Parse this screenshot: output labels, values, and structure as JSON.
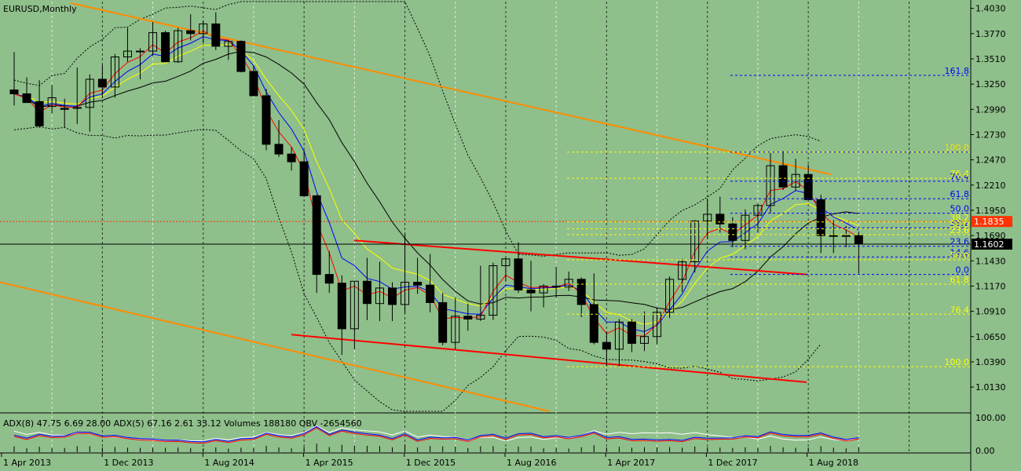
{
  "header": {
    "symbol_label": "EURUSD,Monthly"
  },
  "colors": {
    "background": "#8fbf8b",
    "ema_fast": "#ff0000",
    "ema_mid": "#0000ff",
    "ema_slow": "#ffff00",
    "sma": "#000000",
    "trendline_orange": "#ff8c00",
    "channel_red": "#ff0000",
    "fib_blue": "#0000ff",
    "fib_yellow": "#ffff00",
    "price_tag_bg": "#000000",
    "ask_tag_bg": "#ff3300"
  },
  "chart_data": {
    "type": "candlestick",
    "title": "EURUSD,Monthly",
    "ylim": [
      0.988,
      1.41
    ],
    "y_ticks": [
      "1.4030",
      "1.3770",
      "1.3510",
      "1.3250",
      "1.2990",
      "1.2730",
      "1.2470",
      "1.2210",
      "1.1950",
      "1.1690",
      "1.1430",
      "1.1170",
      "1.0910",
      "1.0650",
      "1.0390",
      "1.0130"
    ],
    "x_ticks": [
      "1 Apr 2013",
      "1 Dec 2013",
      "1 Aug 2014",
      "1 Apr 2015",
      "1 Dec 2015",
      "1 Aug 2016",
      "1 Apr 2017",
      "1 Dec 2017",
      "1 Aug 2018"
    ],
    "current_price": {
      "value": 1.1602,
      "label": "1.1602"
    },
    "ask_price": {
      "value": 1.1835,
      "label": "1.1835"
    },
    "candles": [
      {
        "date": "2013-01",
        "o": 1.319,
        "h": 1.358,
        "l": 1.303,
        "c": 1.315
      },
      {
        "date": "2013-02",
        "o": 1.315,
        "h": 1.332,
        "l": 1.306,
        "c": 1.306
      },
      {
        "date": "2013-03",
        "o": 1.307,
        "h": 1.329,
        "l": 1.28,
        "c": 1.282
      },
      {
        "date": "2013-04",
        "o": 1.302,
        "h": 1.324,
        "l": 1.295,
        "c": 1.311
      },
      {
        "date": "2013-05",
        "o": 1.3,
        "h": 1.31,
        "l": 1.28,
        "c": 1.299
      },
      {
        "date": "2013-06",
        "o": 1.3,
        "h": 1.342,
        "l": 1.284,
        "c": 1.301
      },
      {
        "date": "2013-07",
        "o": 1.301,
        "h": 1.335,
        "l": 1.276,
        "c": 1.33
      },
      {
        "date": "2013-08",
        "o": 1.33,
        "h": 1.345,
        "l": 1.311,
        "c": 1.322
      },
      {
        "date": "2013-09",
        "o": 1.322,
        "h": 1.356,
        "l": 1.311,
        "c": 1.353
      },
      {
        "date": "2013-10",
        "o": 1.353,
        "h": 1.383,
        "l": 1.348,
        "c": 1.359
      },
      {
        "date": "2013-11",
        "o": 1.359,
        "h": 1.362,
        "l": 1.33,
        "c": 1.359
      },
      {
        "date": "2013-12",
        "o": 1.359,
        "h": 1.389,
        "l": 1.354,
        "c": 1.378
      },
      {
        "date": "2014-01",
        "o": 1.378,
        "h": 1.38,
        "l": 1.348,
        "c": 1.348
      },
      {
        "date": "2014-02",
        "o": 1.348,
        "h": 1.383,
        "l": 1.347,
        "c": 1.38
      },
      {
        "date": "2014-03",
        "o": 1.38,
        "h": 1.397,
        "l": 1.37,
        "c": 1.377
      },
      {
        "date": "2014-04",
        "o": 1.377,
        "h": 1.39,
        "l": 1.367,
        "c": 1.387
      },
      {
        "date": "2014-05",
        "o": 1.387,
        "h": 1.399,
        "l": 1.36,
        "c": 1.364
      },
      {
        "date": "2014-06",
        "o": 1.364,
        "h": 1.37,
        "l": 1.35,
        "c": 1.369
      },
      {
        "date": "2014-07",
        "o": 1.369,
        "h": 1.37,
        "l": 1.337,
        "c": 1.338
      },
      {
        "date": "2014-08",
        "o": 1.338,
        "h": 1.344,
        "l": 1.313,
        "c": 1.313
      },
      {
        "date": "2014-09",
        "o": 1.313,
        "h": 1.32,
        "l": 1.257,
        "c": 1.263
      },
      {
        "date": "2014-10",
        "o": 1.263,
        "h": 1.288,
        "l": 1.25,
        "c": 1.253
      },
      {
        "date": "2014-11",
        "o": 1.253,
        "h": 1.26,
        "l": 1.236,
        "c": 1.245
      },
      {
        "date": "2014-12",
        "o": 1.245,
        "h": 1.257,
        "l": 1.209,
        "c": 1.21
      },
      {
        "date": "2015-01",
        "o": 1.21,
        "h": 1.211,
        "l": 1.11,
        "c": 1.129
      },
      {
        "date": "2015-02",
        "o": 1.129,
        "h": 1.153,
        "l": 1.11,
        "c": 1.12
      },
      {
        "date": "2015-03",
        "o": 1.12,
        "h": 1.128,
        "l": 1.046,
        "c": 1.073
      },
      {
        "date": "2015-04",
        "o": 1.073,
        "h": 1.122,
        "l": 1.052,
        "c": 1.122
      },
      {
        "date": "2015-05",
        "o": 1.122,
        "h": 1.146,
        "l": 1.082,
        "c": 1.099
      },
      {
        "date": "2015-06",
        "o": 1.099,
        "h": 1.142,
        "l": 1.081,
        "c": 1.115
      },
      {
        "date": "2015-07",
        "o": 1.115,
        "h": 1.121,
        "l": 1.081,
        "c": 1.098
      },
      {
        "date": "2015-08",
        "o": 1.098,
        "h": 1.171,
        "l": 1.089,
        "c": 1.121
      },
      {
        "date": "2015-09",
        "o": 1.121,
        "h": 1.146,
        "l": 1.109,
        "c": 1.118
      },
      {
        "date": "2015-10",
        "o": 1.118,
        "h": 1.15,
        "l": 1.09,
        "c": 1.1
      },
      {
        "date": "2015-11",
        "o": 1.1,
        "h": 1.11,
        "l": 1.056,
        "c": 1.059
      },
      {
        "date": "2015-12",
        "o": 1.059,
        "h": 1.105,
        "l": 1.052,
        "c": 1.086
      },
      {
        "date": "2016-01",
        "o": 1.086,
        "h": 1.099,
        "l": 1.071,
        "c": 1.083
      },
      {
        "date": "2016-02",
        "o": 1.083,
        "h": 1.138,
        "l": 1.081,
        "c": 1.087
      },
      {
        "date": "2016-03",
        "o": 1.087,
        "h": 1.141,
        "l": 1.082,
        "c": 1.138
      },
      {
        "date": "2016-04",
        "o": 1.138,
        "h": 1.146,
        "l": 1.122,
        "c": 1.145
      },
      {
        "date": "2016-05",
        "o": 1.145,
        "h": 1.162,
        "l": 1.11,
        "c": 1.113
      },
      {
        "date": "2016-06",
        "o": 1.113,
        "h": 1.143,
        "l": 1.091,
        "c": 1.11
      },
      {
        "date": "2016-07",
        "o": 1.11,
        "h": 1.119,
        "l": 1.095,
        "c": 1.117
      },
      {
        "date": "2016-08",
        "o": 1.117,
        "h": 1.137,
        "l": 1.105,
        "c": 1.116
      },
      {
        "date": "2016-09",
        "o": 1.116,
        "h": 1.132,
        "l": 1.112,
        "c": 1.124
      },
      {
        "date": "2016-10",
        "o": 1.124,
        "h": 1.126,
        "l": 1.085,
        "c": 1.098
      },
      {
        "date": "2016-11",
        "o": 1.098,
        "h": 1.13,
        "l": 1.057,
        "c": 1.059
      },
      {
        "date": "2016-12",
        "o": 1.059,
        "h": 1.07,
        "l": 1.034,
        "c": 1.052
      },
      {
        "date": "2017-01",
        "o": 1.052,
        "h": 1.083,
        "l": 1.034,
        "c": 1.08
      },
      {
        "date": "2017-02",
        "o": 1.08,
        "h": 1.083,
        "l": 1.049,
        "c": 1.058
      },
      {
        "date": "2017-03",
        "o": 1.058,
        "h": 1.091,
        "l": 1.05,
        "c": 1.065
      },
      {
        "date": "2017-04",
        "o": 1.065,
        "h": 1.095,
        "l": 1.057,
        "c": 1.09
      },
      {
        "date": "2017-05",
        "o": 1.09,
        "h": 1.127,
        "l": 1.084,
        "c": 1.124
      },
      {
        "date": "2017-06",
        "o": 1.124,
        "h": 1.145,
        "l": 1.111,
        "c": 1.142
      },
      {
        "date": "2017-07",
        "o": 1.142,
        "h": 1.185,
        "l": 1.131,
        "c": 1.184
      },
      {
        "date": "2017-08",
        "o": 1.184,
        "h": 1.207,
        "l": 1.166,
        "c": 1.191
      },
      {
        "date": "2017-09",
        "o": 1.191,
        "h": 1.209,
        "l": 1.172,
        "c": 1.181
      },
      {
        "date": "2017-10",
        "o": 1.181,
        "h": 1.188,
        "l": 1.157,
        "c": 1.164
      },
      {
        "date": "2017-11",
        "o": 1.164,
        "h": 1.196,
        "l": 1.155,
        "c": 1.19
      },
      {
        "date": "2017-12",
        "o": 1.19,
        "h": 1.202,
        "l": 1.172,
        "c": 1.2
      },
      {
        "date": "2018-01",
        "o": 1.2,
        "h": 1.254,
        "l": 1.192,
        "c": 1.241
      },
      {
        "date": "2018-02",
        "o": 1.241,
        "h": 1.256,
        "l": 1.216,
        "c": 1.219
      },
      {
        "date": "2018-03",
        "o": 1.219,
        "h": 1.248,
        "l": 1.215,
        "c": 1.232
      },
      {
        "date": "2018-04",
        "o": 1.232,
        "h": 1.242,
        "l": 1.206,
        "c": 1.206
      },
      {
        "date": "2018-05",
        "o": 1.206,
        "h": 1.211,
        "l": 1.151,
        "c": 1.169
      },
      {
        "date": "2018-06",
        "o": 1.169,
        "h": 1.185,
        "l": 1.151,
        "c": 1.169
      },
      {
        "date": "2018-07",
        "o": 1.169,
        "h": 1.179,
        "l": 1.157,
        "c": 1.169
      },
      {
        "date": "2018-08",
        "o": 1.169,
        "h": 1.173,
        "l": 1.13,
        "c": 1.1602
      }
    ],
    "fibo_blue": {
      "levels": [
        {
          "label": "161.8",
          "value": 1.334
        },
        {
          "label": "100.0",
          "value": 1.255
        },
        {
          "label": "76.4",
          "value": 1.225
        },
        {
          "label": "61.8",
          "value": 1.207
        },
        {
          "label": "50.0",
          "value": 1.192
        },
        {
          "label": "38.2",
          "value": 1.177
        },
        {
          "label": "23.6",
          "value": 1.158
        },
        {
          "label": "14.6",
          "value": 1.147
        },
        {
          "label": "0.0",
          "value": 1.129
        }
      ]
    },
    "fibo_yellow": {
      "levels": [
        {
          "label": "100.0",
          "value": 1.255
        },
        {
          "label": "76.4",
          "value": 1.228
        },
        {
          "label": "50.0",
          "value": 1.176
        },
        {
          "label": "23.6",
          "value": 1.17
        },
        {
          "label": "38.2",
          "value": 1.183
        },
        {
          "label": "50.0",
          "value": 1.144
        },
        {
          "label": "61.8",
          "value": 1.119
        },
        {
          "label": "76.4",
          "value": 1.088
        },
        {
          "label": "100.0",
          "value": 1.034
        }
      ]
    },
    "indicator": {
      "label": "ADX(8) 47.75 6.69 28.00  ADX(5) 67.16 2.61 33.12  Volumes 188180  OBV -2654560",
      "y_ticks": [
        "100.00",
        "0.00"
      ]
    }
  }
}
